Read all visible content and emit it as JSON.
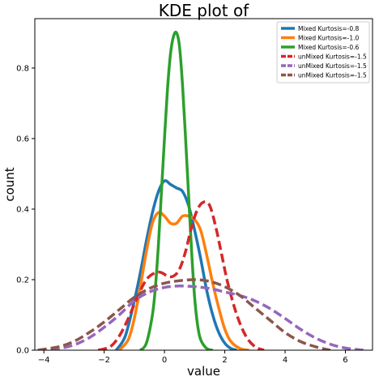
{
  "chart_data": {
    "type": "line",
    "title": "KDE plot of",
    "xlabel": "value",
    "ylabel": "count",
    "xlim": [
      -4.3,
      6.9
    ],
    "ylim": [
      0,
      0.94
    ],
    "xticks": [
      -4,
      -2,
      0,
      2,
      4,
      6
    ],
    "yticks": [
      0.0,
      0.2,
      0.4,
      0.6,
      0.8
    ],
    "grid": false,
    "legend_position": "top-right",
    "series": [
      {
        "name": "Mixed Kurtosis=-0.8",
        "color": "#1f77b4",
        "dashed": false,
        "x": [
          -1.6,
          -1.3,
          -1.0,
          -0.8,
          -0.6,
          -0.4,
          -0.2,
          0.0,
          0.2,
          0.4,
          0.6,
          0.8,
          1.0,
          1.2,
          1.4,
          1.6,
          1.8,
          2.0,
          2.2,
          2.4
        ],
        "y": [
          0.0,
          0.04,
          0.14,
          0.22,
          0.31,
          0.39,
          0.45,
          0.48,
          0.47,
          0.46,
          0.45,
          0.41,
          0.34,
          0.26,
          0.17,
          0.1,
          0.05,
          0.02,
          0.005,
          0.0
        ]
      },
      {
        "name": "Mixed Kurtosis=-1.0",
        "color": "#ff7f0e",
        "dashed": false,
        "x": [
          -1.5,
          -1.2,
          -1.0,
          -0.8,
          -0.6,
          -0.4,
          -0.2,
          0.0,
          0.2,
          0.4,
          0.6,
          0.8,
          1.0,
          1.2,
          1.4,
          1.6,
          1.8,
          2.0,
          2.2,
          2.5,
          2.8
        ],
        "y": [
          0.0,
          0.03,
          0.09,
          0.18,
          0.28,
          0.36,
          0.39,
          0.38,
          0.36,
          0.36,
          0.38,
          0.38,
          0.37,
          0.34,
          0.27,
          0.19,
          0.12,
          0.06,
          0.025,
          0.005,
          0.0
        ]
      },
      {
        "name": "Mixed Kurtosis=-0.6",
        "color": "#2ca02c",
        "dashed": false,
        "x": [
          -0.8,
          -0.6,
          -0.4,
          -0.3,
          -0.2,
          -0.1,
          0.0,
          0.1,
          0.2,
          0.3,
          0.4,
          0.5,
          0.6,
          0.7,
          0.8,
          0.9,
          1.0,
          1.1,
          1.2,
          1.4,
          1.6
        ],
        "y": [
          0.0,
          0.02,
          0.1,
          0.18,
          0.3,
          0.45,
          0.6,
          0.74,
          0.84,
          0.89,
          0.9,
          0.86,
          0.75,
          0.6,
          0.44,
          0.28,
          0.15,
          0.07,
          0.03,
          0.005,
          0.0
        ]
      },
      {
        "name": "unMixed Kurtosis=-1.5",
        "color": "#d62728",
        "dashed": true,
        "x": [
          -2.2,
          -1.8,
          -1.5,
          -1.2,
          -0.9,
          -0.6,
          -0.3,
          -0.1,
          0.1,
          0.3,
          0.5,
          0.7,
          0.9,
          1.1,
          1.3,
          1.5,
          1.7,
          1.9,
          2.1,
          2.4,
          2.7,
          3.0,
          3.3
        ],
        "y": [
          0.0,
          0.01,
          0.04,
          0.09,
          0.15,
          0.2,
          0.22,
          0.22,
          0.21,
          0.21,
          0.23,
          0.28,
          0.35,
          0.4,
          0.42,
          0.41,
          0.35,
          0.27,
          0.19,
          0.1,
          0.04,
          0.01,
          0.0
        ]
      },
      {
        "name": "unMixed Kurtosis=-1.5",
        "color": "#9467bd",
        "dashed": true,
        "x": [
          -4.2,
          -3.5,
          -3.0,
          -2.5,
          -2.0,
          -1.5,
          -1.0,
          -0.5,
          0.0,
          0.5,
          1.0,
          1.5,
          2.0,
          2.5,
          3.0,
          3.5,
          4.0,
          4.5,
          5.0,
          5.5,
          6.0,
          6.6
        ],
        "y": [
          0.0,
          0.005,
          0.015,
          0.035,
          0.065,
          0.1,
          0.14,
          0.165,
          0.178,
          0.182,
          0.18,
          0.175,
          0.165,
          0.155,
          0.14,
          0.118,
          0.09,
          0.06,
          0.035,
          0.017,
          0.006,
          0.0
        ]
      },
      {
        "name": "unMixed Kurtosis=-1.5",
        "color": "#8c564b",
        "dashed": true,
        "x": [
          -4.2,
          -3.5,
          -3.0,
          -2.5,
          -2.0,
          -1.5,
          -1.0,
          -0.5,
          0.0,
          0.5,
          1.0,
          1.5,
          2.0,
          2.5,
          3.0,
          3.5,
          4.0,
          4.5,
          5.0,
          5.5
        ],
        "y": [
          0.0,
          0.01,
          0.025,
          0.05,
          0.08,
          0.115,
          0.15,
          0.175,
          0.19,
          0.197,
          0.2,
          0.195,
          0.18,
          0.155,
          0.12,
          0.085,
          0.05,
          0.025,
          0.01,
          0.0
        ]
      }
    ]
  }
}
